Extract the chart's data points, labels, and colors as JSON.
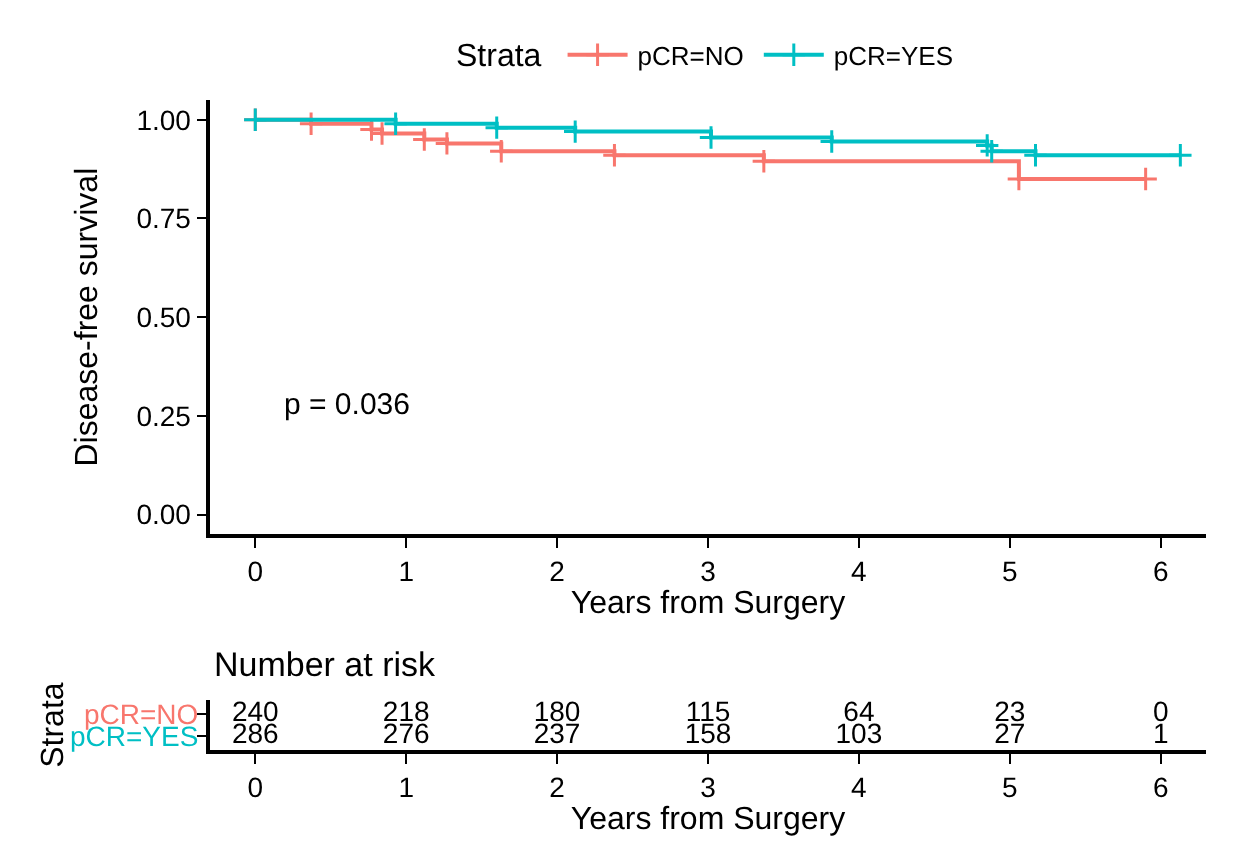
{
  "chart_data": [
    {
      "type": "step",
      "ylabel": "Disease-free survival",
      "xlabel": "Years from Surgery",
      "legend_title": "Strata",
      "legend": "top",
      "marker": "cross",
      "line_style": "solid",
      "xlim": [
        -0.3,
        6.3
      ],
      "xticks": [
        0,
        1,
        2,
        3,
        4,
        5,
        6
      ],
      "ylim": [
        -0.05,
        1.05
      ],
      "yticks": [
        {
          "value": 0,
          "label": "0.00"
        },
        {
          "value": 0.25,
          "label": "0.25"
        },
        {
          "value": 0.5,
          "label": "0.50"
        },
        {
          "value": 0.75,
          "label": "0.75"
        },
        {
          "value": 1,
          "label": "1.00"
        }
      ],
      "annotations": [
        "p = 0.036"
      ],
      "series": [
        {
          "name": "pCR=NO",
          "color": "#f8766d",
          "x": [
            0,
            0.37,
            0.77,
            0.84,
            1.12,
            1.27,
            1.63,
            2.38,
            3.37,
            5.06,
            5.9
          ],
          "values": [
            1.0,
            0.99,
            0.975,
            0.965,
            0.95,
            0.94,
            0.92,
            0.91,
            0.895,
            0.85,
            0.85
          ]
        },
        {
          "name": "pCR=YES",
          "color": "#00bfc4",
          "x": [
            0,
            0.93,
            1.6,
            2.12,
            3.02,
            3.82,
            4.85,
            4.88,
            5.17,
            6.13
          ],
          "values": [
            1.0,
            0.99,
            0.98,
            0.97,
            0.955,
            0.945,
            0.935,
            0.92,
            0.91,
            0.91
          ]
        }
      ]
    },
    {
      "type": "heatmap",
      "title": "Number at risk",
      "ylabel": "Strata",
      "xlabel": "Years from Surgery",
      "data_labels": true,
      "categories": [
        "0",
        "1",
        "2",
        "3",
        "4",
        "5",
        "6"
      ],
      "y_categories": [
        "pCR=NO",
        "pCR=YES"
      ],
      "cells": [
        [
          240,
          218,
          180,
          115,
          64,
          23,
          0
        ],
        [
          286,
          276,
          237,
          158,
          103,
          27,
          1
        ]
      ]
    }
  ]
}
